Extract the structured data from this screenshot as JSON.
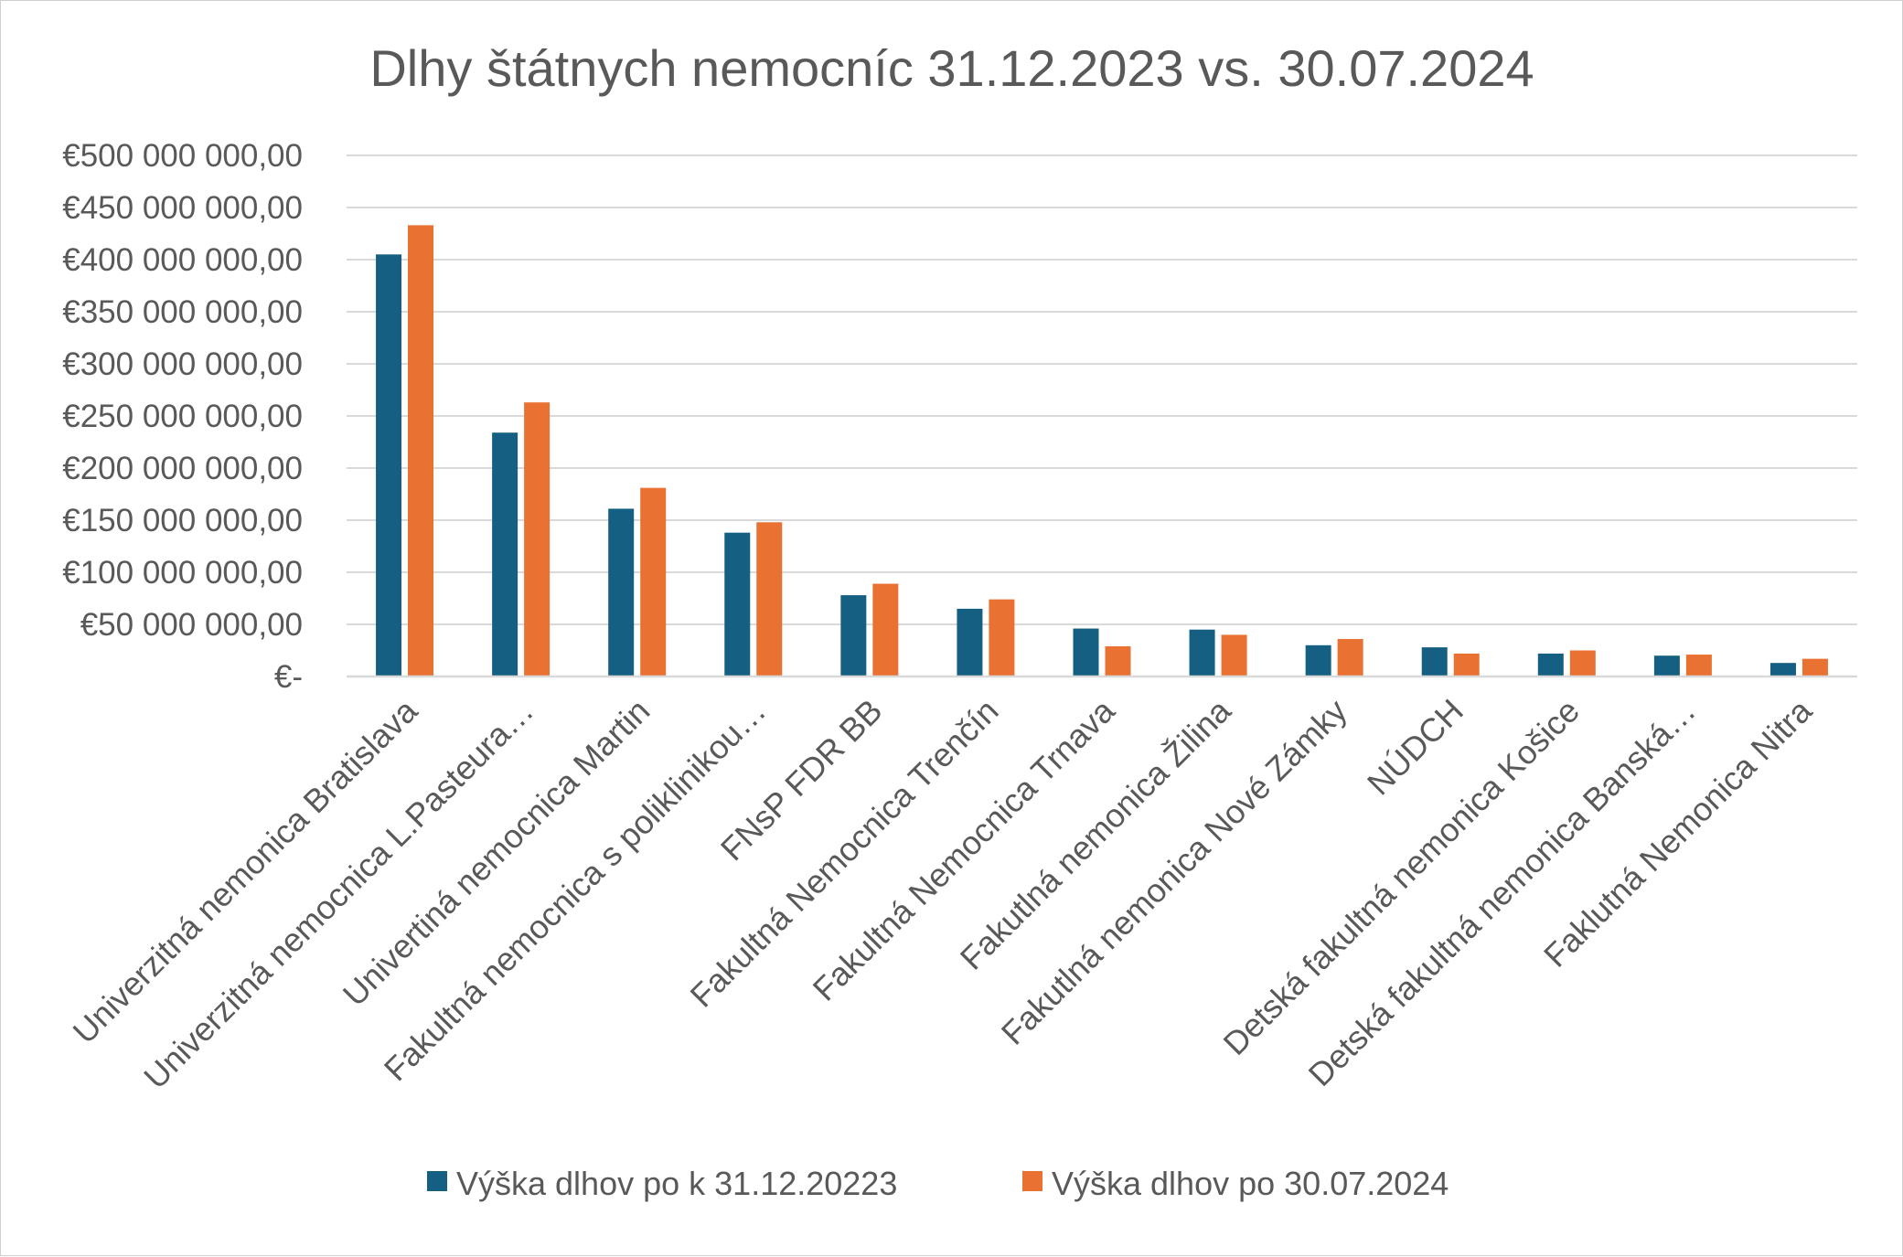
{
  "chart_data": {
    "type": "bar",
    "title": "Dlhy štátnych nemocníc 31.12.2023 vs. 30.07.2024",
    "xlabel": "",
    "ylabel": "",
    "ylim": [
      0,
      500000000
    ],
    "ytick_values": [
      0,
      50000000,
      100000000,
      150000000,
      200000000,
      250000000,
      300000000,
      350000000,
      400000000,
      450000000,
      500000000
    ],
    "ytick_labels": [
      "€-",
      "€50 000 000,00",
      "€100 000 000,00",
      "€150 000 000,00",
      "€200 000 000,00",
      "€250 000 000,00",
      "€300 000 000,00",
      "€350 000 000,00",
      "€400 000 000,00",
      "€450 000 000,00",
      "€500 000 000,00"
    ],
    "grid": true,
    "legend_position": "bottom",
    "categories": [
      "Univerzitná nemonica Bratislava",
      "Univerzitná nemocnica L.Pasteura…",
      "Univertiná nemocnica Martin",
      "Fakultná nemocnica s poliklinikou…",
      "FNsP FDR BB",
      "Fakultná Nemocnica Trenčín",
      "Fakultná Nemocnica Trnava",
      "Fakutlná nemonica Žilina",
      "Fakutlná nemonica Nové Zámky",
      "NÚDCH",
      "Detská fakultná nemonica Košice",
      "Detská fakultná nemonica Banská…",
      "Faklutná Nemonica Nitra"
    ],
    "series": [
      {
        "name": "Výška dlhov po  k 31.12.20223",
        "color": "#156082",
        "values": [
          405000000,
          234000000,
          161000000,
          138000000,
          78000000,
          65000000,
          46000000,
          45000000,
          30000000,
          28000000,
          22000000,
          20000000,
          13000000
        ]
      },
      {
        "name": "Výška dlhov po  30.07.2024",
        "color": "#e97132",
        "values": [
          433000000,
          263000000,
          181000000,
          148000000,
          89000000,
          74000000,
          29000000,
          40000000,
          36000000,
          22000000,
          25000000,
          21000000,
          17000000
        ]
      }
    ]
  }
}
